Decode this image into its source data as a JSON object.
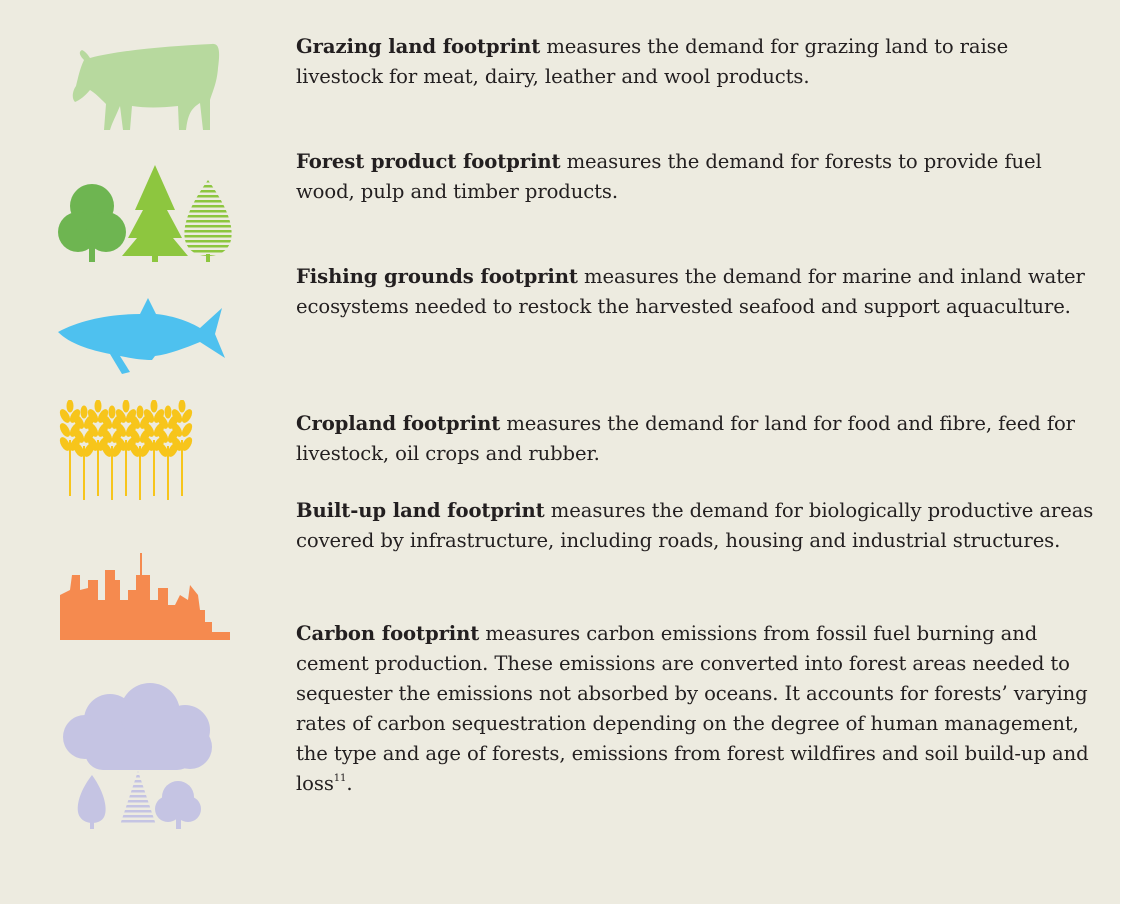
{
  "items": [
    {
      "term": "Grazing land footprint",
      "text": "measures the demand for grazing land to raise livestock for meat, dairy, leather and wool products."
    },
    {
      "term": "Forest product footprint",
      "text": "measures the demand for forests to provide fuel wood, pulp and timber products."
    },
    {
      "term": "Fishing grounds footprint",
      "text": "measures the demand for marine and inland water ecosystems needed to restock the harvested seafood and support aquaculture."
    },
    {
      "term": "Cropland footprint",
      "text": "measures the demand for land for food and fibre, feed for livestock, oil crops and rubber."
    },
    {
      "term": "Built-up land footprint",
      "text": "measures the demand for biologically productive areas covered by infrastructure, including roads, housing and industrial structures."
    },
    {
      "term": "Carbon footprint",
      "text": "measures carbon emissions from fossil fuel burning and cement production. These emissions are converted into forest areas needed to sequester the emissions not absorbed by oceans. It accounts for forests’ varying rates of carbon sequestration depending on the degree of human management, the type and age of forests, emissions from forest wildfires and soil build-up and loss",
      "note": "11",
      "tail": "."
    }
  ]
}
